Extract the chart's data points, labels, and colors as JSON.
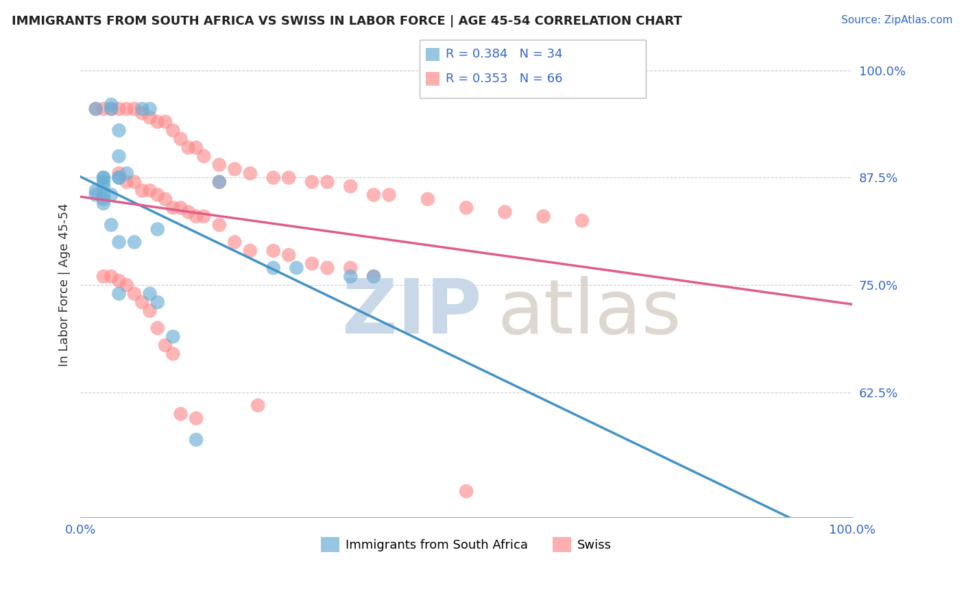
{
  "title": "IMMIGRANTS FROM SOUTH AFRICA VS SWISS IN LABOR FORCE | AGE 45-54 CORRELATION CHART",
  "source": "Source: ZipAtlas.com",
  "ylabel": "In Labor Force | Age 45-54",
  "xlim": [
    0.0,
    1.0
  ],
  "ylim": [
    0.48,
    1.02
  ],
  "yticks": [
    0.625,
    0.75,
    0.875,
    1.0
  ],
  "ytick_labels": [
    "62.5%",
    "75.0%",
    "87.5%",
    "100.0%"
  ],
  "blue_R": 0.384,
  "blue_N": 34,
  "pink_R": 0.353,
  "pink_N": 66,
  "blue_label": "Immigrants from South Africa",
  "pink_label": "Swiss",
  "blue_color": "#6baed6",
  "pink_color": "#fc8d8d",
  "blue_line_color": "#4292c6",
  "pink_line_color": "#e05c8a",
  "blue_scatter_x": [
    0.02,
    0.04,
    0.04,
    0.08,
    0.09,
    0.05,
    0.05,
    0.06,
    0.05,
    0.05,
    0.03,
    0.03,
    0.03,
    0.03,
    0.02,
    0.02,
    0.03,
    0.04,
    0.03,
    0.03,
    0.04,
    0.05,
    0.07,
    0.1,
    0.25,
    0.28,
    0.35,
    0.38,
    0.05,
    0.09,
    0.1,
    0.12,
    0.15,
    0.18
  ],
  "blue_scatter_y": [
    0.955,
    0.955,
    0.96,
    0.955,
    0.955,
    0.93,
    0.9,
    0.88,
    0.875,
    0.875,
    0.875,
    0.875,
    0.87,
    0.865,
    0.86,
    0.855,
    0.855,
    0.855,
    0.85,
    0.845,
    0.82,
    0.8,
    0.8,
    0.815,
    0.77,
    0.77,
    0.76,
    0.76,
    0.74,
    0.74,
    0.73,
    0.69,
    0.57,
    0.87
  ],
  "pink_scatter_x": [
    0.02,
    0.03,
    0.04,
    0.05,
    0.06,
    0.07,
    0.08,
    0.09,
    0.1,
    0.11,
    0.12,
    0.13,
    0.14,
    0.15,
    0.16,
    0.18,
    0.2,
    0.22,
    0.25,
    0.27,
    0.3,
    0.32,
    0.35,
    0.38,
    0.4,
    0.45,
    0.5,
    0.55,
    0.6,
    0.65,
    0.05,
    0.06,
    0.07,
    0.08,
    0.09,
    0.1,
    0.11,
    0.12,
    0.13,
    0.14,
    0.15,
    0.16,
    0.18,
    0.2,
    0.22,
    0.25,
    0.27,
    0.3,
    0.32,
    0.35,
    0.38,
    0.03,
    0.04,
    0.05,
    0.06,
    0.07,
    0.08,
    0.09,
    0.1,
    0.11,
    0.12,
    0.13,
    0.15,
    0.18,
    0.23,
    0.5
  ],
  "pink_scatter_y": [
    0.955,
    0.955,
    0.955,
    0.955,
    0.955,
    0.955,
    0.95,
    0.945,
    0.94,
    0.94,
    0.93,
    0.92,
    0.91,
    0.91,
    0.9,
    0.89,
    0.885,
    0.88,
    0.875,
    0.875,
    0.87,
    0.87,
    0.865,
    0.855,
    0.855,
    0.85,
    0.84,
    0.835,
    0.83,
    0.825,
    0.88,
    0.87,
    0.87,
    0.86,
    0.86,
    0.855,
    0.85,
    0.84,
    0.84,
    0.835,
    0.83,
    0.83,
    0.82,
    0.8,
    0.79,
    0.79,
    0.785,
    0.775,
    0.77,
    0.77,
    0.76,
    0.76,
    0.76,
    0.755,
    0.75,
    0.74,
    0.73,
    0.72,
    0.7,
    0.68,
    0.67,
    0.6,
    0.595,
    0.87,
    0.61,
    0.51
  ]
}
